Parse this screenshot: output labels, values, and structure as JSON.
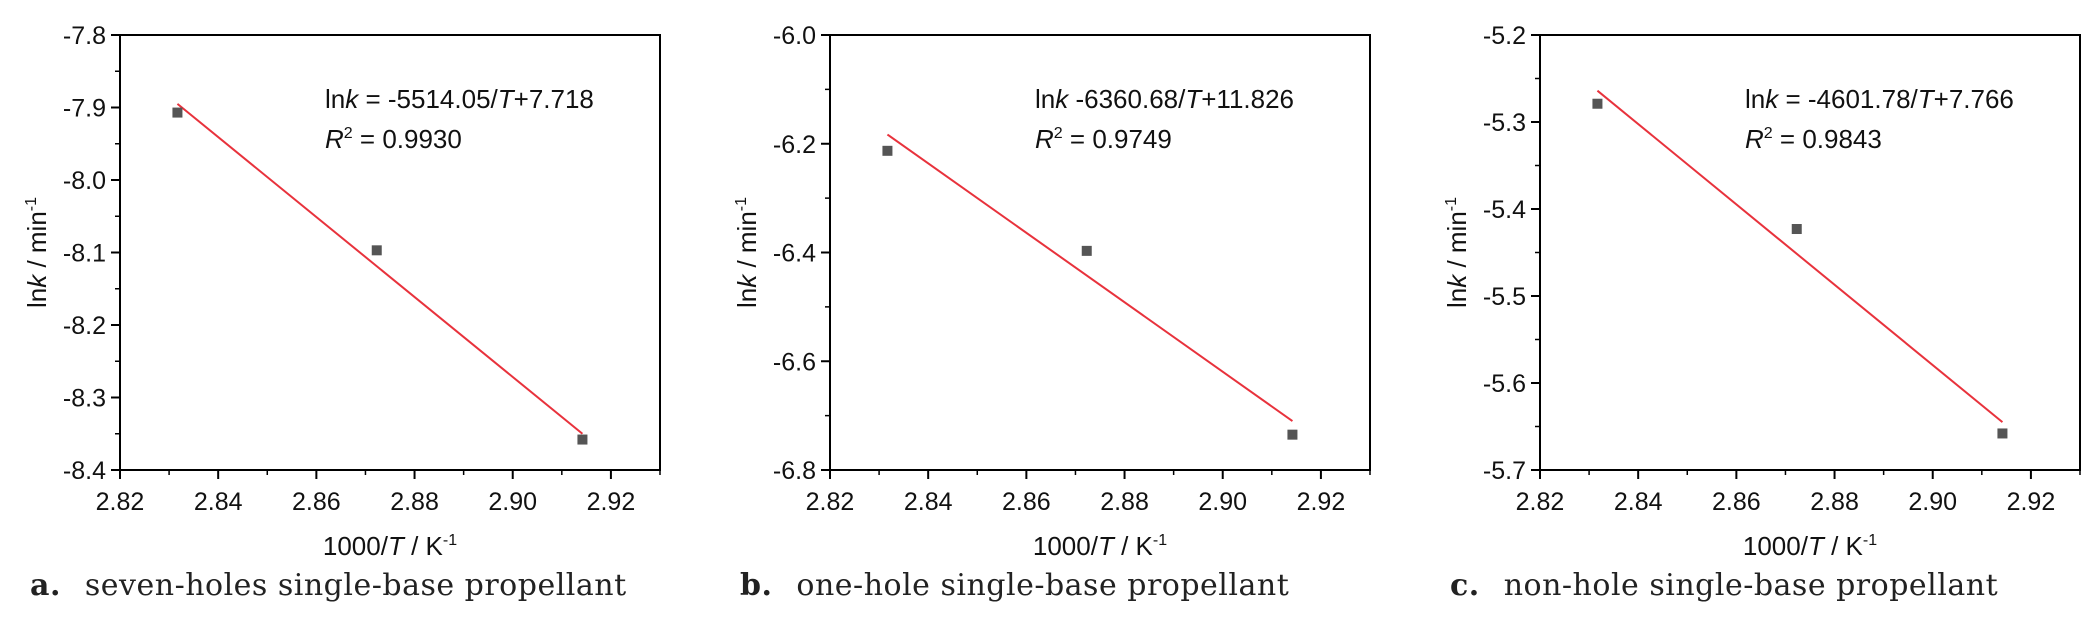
{
  "chart_data": [
    {
      "type": "scatter",
      "panel_letter": "a.",
      "caption": "seven-holes single-base propellant",
      "xlabel": {
        "pre": "1000/",
        "italic": "T",
        "post": " / K",
        "sup": "-1"
      },
      "ylabel": {
        "pre": "ln",
        "italic": "k",
        "post": " / min",
        "sup": "-1"
      },
      "xlim": [
        2.82,
        2.93
      ],
      "ylim": [
        -8.4,
        -7.8
      ],
      "xticks": [
        "2.82",
        "2.84",
        "2.86",
        "2.88",
        "2.90",
        "2.92"
      ],
      "yticks": [
        "-8.4",
        "-8.3",
        "-8.2",
        "-8.1",
        "-8.0",
        "-7.9",
        "-7.8"
      ],
      "points": [
        {
          "x": 2.8317,
          "y": -7.907
        },
        {
          "x": 2.8723,
          "y": -8.097
        },
        {
          "x": 2.9142,
          "y": -8.358
        }
      ],
      "fit": {
        "x": [
          2.8317,
          2.9142
        ],
        "y": [
          -7.895,
          -8.35
        ],
        "color": "#e8323c"
      },
      "eq_line1": {
        "pre": "ln",
        "italic": "k",
        "mid": "  = -5514.05/",
        "italic2": "T",
        "post": "+7.718"
      },
      "eq_line2": {
        "italic": "R",
        "sup": "2",
        "post": " = 0.9930"
      },
      "marker_color": "#555555"
    },
    {
      "type": "scatter",
      "panel_letter": "b.",
      "caption": "one-hole single-base propellant",
      "xlabel": {
        "pre": "1000/",
        "italic": "T",
        "post": " / K",
        "sup": "-1"
      },
      "ylabel": {
        "pre": "ln",
        "italic": "k",
        "post": " / min",
        "sup": "-1"
      },
      "xlim": [
        2.82,
        2.93
      ],
      "ylim": [
        -6.8,
        -6.0
      ],
      "xticks": [
        "2.82",
        "2.84",
        "2.86",
        "2.88",
        "2.90",
        "2.92"
      ],
      "yticks": [
        "-6.8",
        "-6.6",
        "-6.4",
        "-6.2",
        "-6.0"
      ],
      "points": [
        {
          "x": 2.8317,
          "y": -6.213
        },
        {
          "x": 2.8723,
          "y": -6.397
        },
        {
          "x": 2.9142,
          "y": -6.735
        }
      ],
      "fit": {
        "x": [
          2.8317,
          2.9142
        ],
        "y": [
          -6.183,
          -6.71
        ],
        "color": "#e8323c"
      },
      "eq_line1": {
        "pre": "ln",
        "italic": "k",
        "mid": "  -6360.68/",
        "italic2": "T",
        "post": "+11.826"
      },
      "eq_line2": {
        "italic": "R",
        "sup": "2",
        "post": " = 0.9749"
      },
      "marker_color": "#555555"
    },
    {
      "type": "scatter",
      "panel_letter": "c.",
      "caption": "non-hole single-base propellant",
      "xlabel": {
        "pre": "1000/",
        "italic": "T",
        "post": " / K",
        "sup": "-1"
      },
      "ylabel": {
        "pre": "ln",
        "italic": "k",
        "post": " / min",
        "sup": "-1"
      },
      "xlim": [
        2.82,
        2.93
      ],
      "ylim": [
        -5.7,
        -5.2
      ],
      "xticks": [
        "2.82",
        "2.84",
        "2.86",
        "2.88",
        "2.90",
        "2.92"
      ],
      "yticks": [
        "-5.7",
        "-5.6",
        "-5.5",
        "-5.4",
        "-5.3",
        "-5.2"
      ],
      "points": [
        {
          "x": 2.8317,
          "y": -5.279
        },
        {
          "x": 2.8723,
          "y": -5.423
        },
        {
          "x": 2.9142,
          "y": -5.658
        }
      ],
      "fit": {
        "x": [
          2.8317,
          2.9142
        ],
        "y": [
          -5.264,
          -5.645
        ],
        "color": "#e8323c"
      },
      "eq_line1": {
        "pre": "ln",
        "italic": "k",
        "mid": "  = -4601.78/",
        "italic2": "T",
        "post": "+7.766"
      },
      "eq_line2": {
        "italic": "R",
        "sup": "2",
        "post": " = 0.9843"
      },
      "marker_color": "#555555"
    }
  ]
}
